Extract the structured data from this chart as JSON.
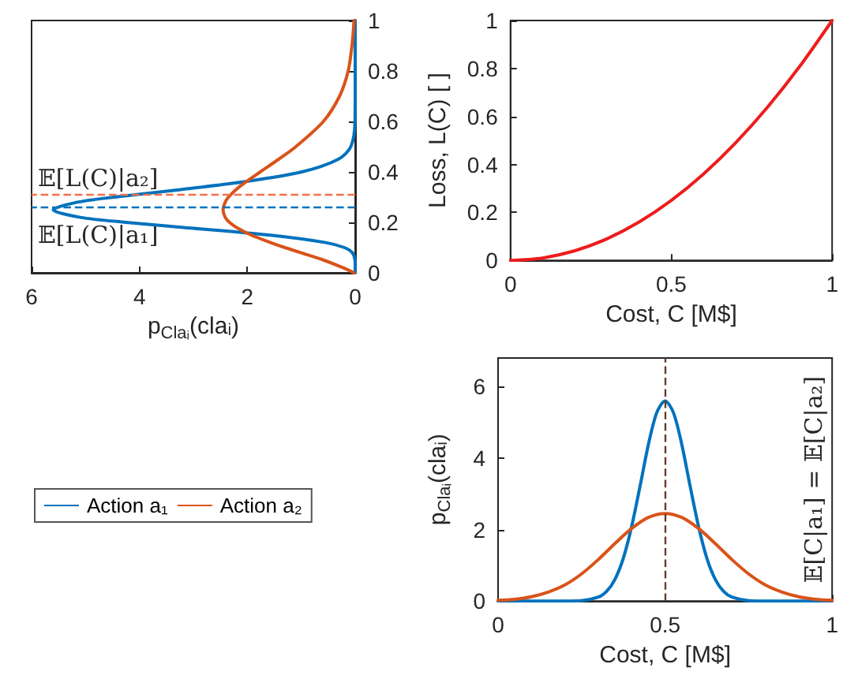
{
  "chart_data": [
    {
      "type": "line",
      "xlabel": "p$_{Claᵢ}$(claᵢ)",
      "xlim": [
        6,
        0
      ],
      "xticks": [
        6,
        4,
        2,
        0
      ],
      "ylim": [
        0,
        1
      ],
      "yticks": [
        0,
        0.2,
        0.4,
        0.6,
        0.8,
        1
      ],
      "grid": false,
      "legend": "bottom",
      "marker": "none",
      "line_style": "solid",
      "series": [
        {
          "name": "Action a₁",
          "color": "#0072bd",
          "x": [
            0,
            0,
            0.003,
            0.054,
            0.2,
            0.546,
            1.6,
            3.18,
            4.25,
            5.1,
            5.6,
            5.15,
            4.47,
            3.24,
            2.09,
            0.99,
            0.315,
            0.081,
            0.003,
            0,
            0,
            0,
            0
          ],
          "values": [
            0,
            0.02,
            0.05,
            0.08,
            0.1,
            0.12,
            0.15,
            0.18,
            0.2,
            0.22,
            0.25,
            0.28,
            0.3,
            0.33,
            0.36,
            0.4,
            0.45,
            0.5,
            0.6,
            0.7,
            0.8,
            0.9,
            1
          ]
        },
        {
          "name": "Action a₂",
          "color": "#d95319",
          "x": [
            0.02,
            0.22,
            0.58,
            1.01,
            1.3,
            1.57,
            1.93,
            2.2,
            2.33,
            2.41,
            2.45,
            2.41,
            2.35,
            2.21,
            2.03,
            1.76,
            1.42,
            1.1,
            0.59,
            0.29,
            0.13,
            0.06,
            0.02
          ],
          "values": [
            0,
            0.02,
            0.05,
            0.08,
            0.1,
            0.12,
            0.15,
            0.18,
            0.2,
            0.22,
            0.25,
            0.28,
            0.3,
            0.33,
            0.36,
            0.4,
            0.45,
            0.5,
            0.6,
            0.7,
            0.8,
            0.9,
            1
          ]
        }
      ],
      "ref_lines": [
        {
          "axis": "y",
          "value": 0.31,
          "label": "𝔼[L(C)|a₂]",
          "color": "#f4704a",
          "line_style": "dashed"
        },
        {
          "axis": "y",
          "value": 0.26,
          "label": "𝔼[L(C)|a₁]",
          "color": "#0072bd",
          "line_style": "dashed"
        }
      ]
    },
    {
      "type": "line",
      "xlabel": "Cost, C [M$]",
      "ylabel": "Loss, L(C) [ ]",
      "xlim": [
        0,
        1
      ],
      "xticks": [
        0,
        0.5,
        1
      ],
      "ylim": [
        0,
        1
      ],
      "yticks": [
        0,
        0.2,
        0.4,
        0.6,
        0.8,
        1
      ],
      "grid": false,
      "legend": false,
      "marker": "none",
      "line_style": "solid",
      "x": [
        0,
        0.1,
        0.2,
        0.3,
        0.4,
        0.5,
        0.6,
        0.7,
        0.8,
        0.9,
        1
      ],
      "series": [
        {
          "color": "#ee1c1c",
          "values": [
            0,
            0.01,
            0.04,
            0.09,
            0.16,
            0.25,
            0.36,
            0.49,
            0.64,
            0.81,
            1
          ]
        }
      ]
    },
    {
      "type": "line",
      "xlabel": "Cost, C [M$]",
      "ylabel": "p$_{Claᵢ}$(claᵢ)",
      "xlim": [
        0,
        1
      ],
      "xticks": [
        0,
        0.5,
        1
      ],
      "ylim": [
        0,
        6.8
      ],
      "yticks": [
        0,
        2,
        4,
        6
      ],
      "grid": false,
      "legend": false,
      "marker": "none",
      "line_style": "solid",
      "series": [
        {
          "color": "#0072bd",
          "x": [
            0,
            0.2,
            0.25,
            0.3,
            0.325,
            0.35,
            0.375,
            0.4,
            0.425,
            0.45,
            0.475,
            0.5,
            0.525,
            0.55,
            0.575,
            0.6,
            0.625,
            0.65,
            0.675,
            0.7,
            0.75,
            0.8,
            1
          ],
          "values": [
            0,
            0,
            0.01,
            0.11,
            0.27,
            0.61,
            1.2,
            2.09,
            3.21,
            4.38,
            5.27,
            5.6,
            5.27,
            4.38,
            3.21,
            2.09,
            1.2,
            0.61,
            0.27,
            0.11,
            0.01,
            0,
            0
          ]
        },
        {
          "color": "#d95319",
          "x": [
            0,
            0.05,
            0.1,
            0.15,
            0.2,
            0.25,
            0.3,
            0.35,
            0.4,
            0.45,
            0.5,
            0.55,
            0.6,
            0.65,
            0.7,
            0.75,
            0.8,
            0.85,
            0.9,
            0.95,
            1
          ],
          "values": [
            0.02,
            0.05,
            0.12,
            0.25,
            0.45,
            0.76,
            1.16,
            1.61,
            2.03,
            2.34,
            2.45,
            2.34,
            2.03,
            1.61,
            1.16,
            0.76,
            0.45,
            0.25,
            0.12,
            0.05,
            0.02
          ]
        }
      ],
      "ref_lines": [
        {
          "axis": "x",
          "value": 0.5,
          "color": "#6b3a2c",
          "line_style": "dashed"
        }
      ],
      "annotations": [
        "𝔼[C|a₁] = 𝔼[C|a₂]"
      ]
    }
  ]
}
